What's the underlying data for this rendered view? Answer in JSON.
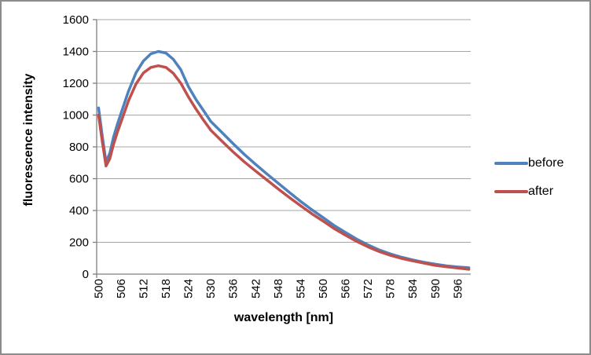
{
  "chart_data": {
    "type": "line",
    "title": "",
    "xlabel": "wavelength [nm]",
    "ylabel": "fluorescence intensity",
    "xlim": [
      500,
      600
    ],
    "ylim": [
      0,
      1600
    ],
    "grid": "horizontal",
    "legend_position": "right",
    "yticks": [
      0,
      200,
      400,
      600,
      800,
      1000,
      1200,
      1400,
      1600
    ],
    "xticks": [
      500,
      506,
      512,
      518,
      524,
      530,
      536,
      542,
      548,
      554,
      560,
      566,
      572,
      578,
      584,
      590,
      596
    ],
    "x": [
      500,
      501,
      502,
      503,
      504,
      505,
      506,
      508,
      510,
      512,
      514,
      516,
      518,
      520,
      522,
      524,
      526,
      528,
      530,
      533,
      536,
      539,
      542,
      545,
      548,
      551,
      554,
      557,
      560,
      563,
      566,
      569,
      572,
      575,
      578,
      581,
      584,
      587,
      590,
      593,
      596,
      599
    ],
    "series": [
      {
        "name": "before",
        "color": "#4F81BD",
        "values": [
          1045,
          870,
          705,
          760,
          860,
          940,
          1010,
          1150,
          1265,
          1340,
          1385,
          1400,
          1390,
          1350,
          1285,
          1180,
          1100,
          1030,
          960,
          890,
          820,
          752,
          690,
          630,
          572,
          514,
          458,
          405,
          356,
          305,
          262,
          220,
          184,
          152,
          127,
          106,
          89,
          74,
          62,
          52,
          45,
          40
        ]
      },
      {
        "name": "after",
        "color": "#C0504D",
        "values": [
          1000,
          835,
          680,
          725,
          815,
          890,
          955,
          1090,
          1195,
          1265,
          1300,
          1310,
          1300,
          1262,
          1200,
          1115,
          1040,
          970,
          905,
          835,
          768,
          705,
          648,
          592,
          536,
          482,
          430,
          380,
          334,
          286,
          245,
          206,
          172,
          142,
          118,
          99,
          83,
          69,
          55,
          46,
          38,
          30
        ]
      }
    ]
  },
  "legend": {
    "items": [
      {
        "label": "before",
        "color": "#4F81BD"
      },
      {
        "label": "after",
        "color": "#C0504D"
      }
    ]
  },
  "colors": {
    "gridline": "#A6A6A6",
    "axis": "#808080",
    "frame_border": "#8C8C8C",
    "text": "#000000",
    "background": "#FFFFFF"
  }
}
